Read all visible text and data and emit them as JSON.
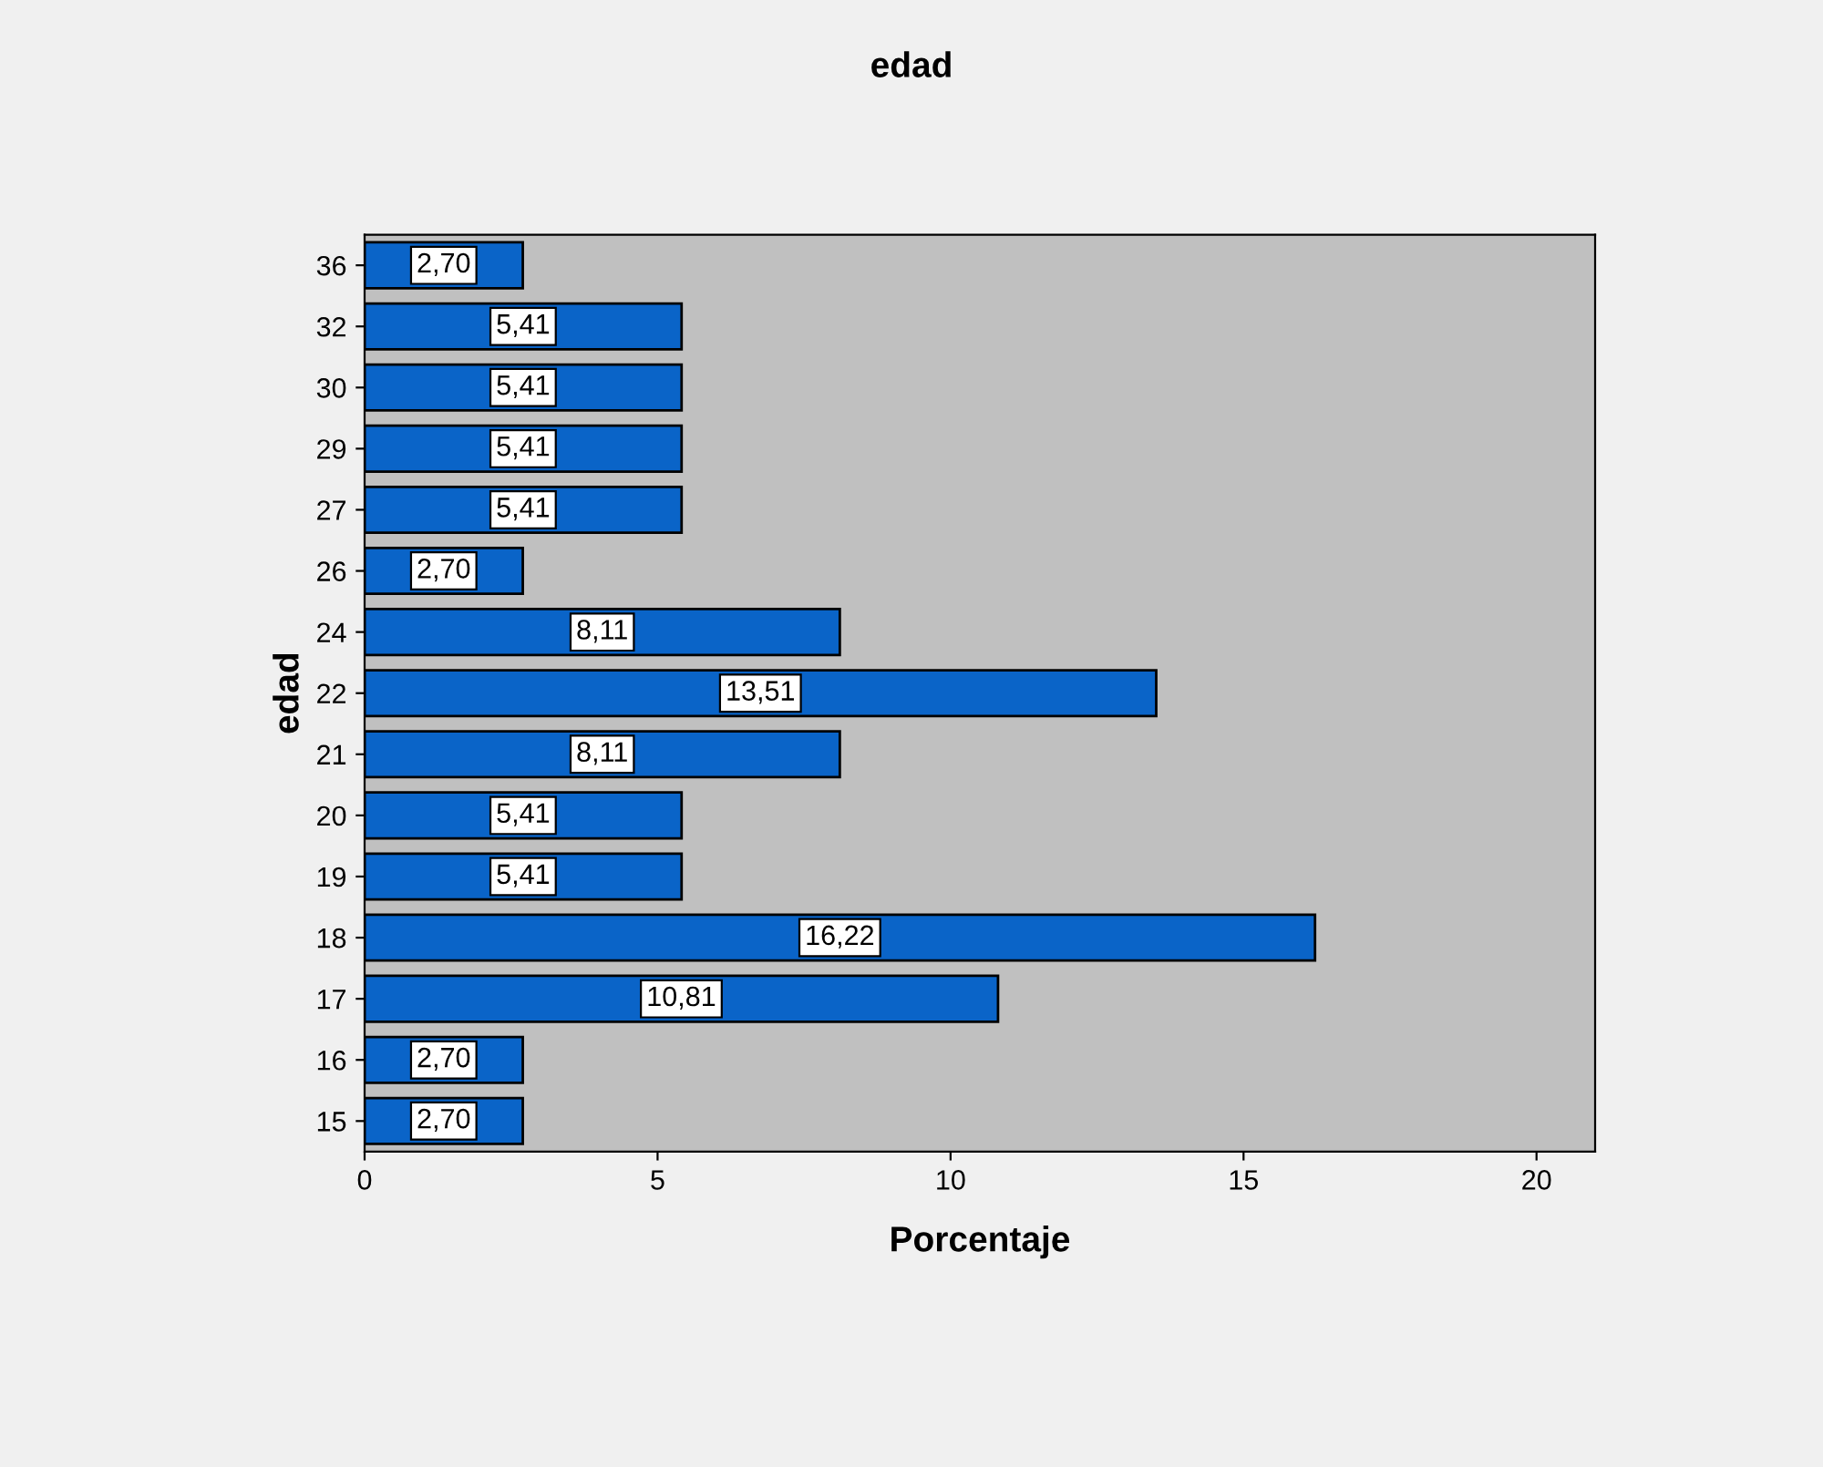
{
  "chart_data": {
    "type": "bar",
    "orientation": "horizontal",
    "title": "edad",
    "xlabel": "Porcentaje",
    "ylabel": "edad",
    "categories": [
      "36",
      "32",
      "30",
      "29",
      "27",
      "26",
      "24",
      "22",
      "21",
      "20",
      "19",
      "18",
      "17",
      "16",
      "15"
    ],
    "values": [
      2.7,
      5.41,
      5.41,
      5.41,
      5.41,
      2.7,
      8.11,
      13.51,
      8.11,
      5.41,
      5.41,
      16.22,
      10.81,
      2.7,
      2.7
    ],
    "value_labels": [
      "2,70",
      "5,41",
      "5,41",
      "5,41",
      "5,41",
      "2,70",
      "8,11",
      "13,51",
      "8,11",
      "5,41",
      "5,41",
      "16,22",
      "10,81",
      "2,70",
      "2,70"
    ],
    "color": "#0a64c8",
    "xlim": [
      0,
      21
    ],
    "xticks": [
      0,
      5,
      10,
      15,
      20
    ],
    "grid": false,
    "legend": false
  }
}
